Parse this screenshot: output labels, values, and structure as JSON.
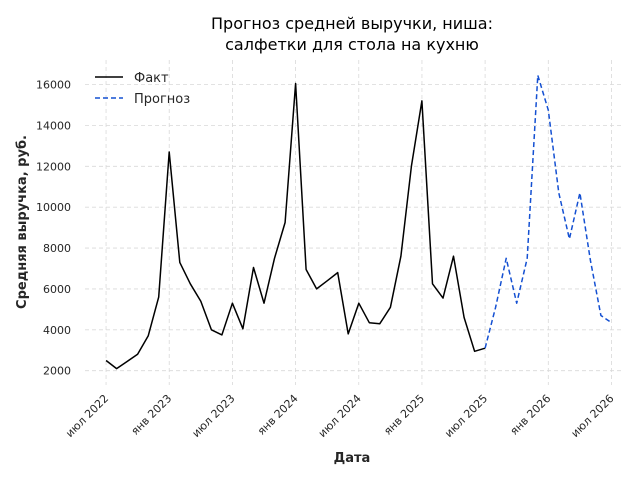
{
  "chart_data": {
    "type": "line",
    "title_lines": [
      "Прогноз средней выручки, ниша:",
      "салфетки для стола на кухню"
    ],
    "xlabel": "Дата",
    "ylabel": "Средняя выручка, руб.",
    "x_ticks": [
      "2022-07",
      "2023-01",
      "2023-07",
      "2024-01",
      "2024-07",
      "2025-01",
      "2025-07",
      "2026-01",
      "2026-07"
    ],
    "x_tick_labels": [
      "июл 2022",
      "янв 2023",
      "июл 2023",
      "янв 2024",
      "июл 2024",
      "янв 2025",
      "июл 2025",
      "янв 2026",
      "июл 2026"
    ],
    "y_ticks": [
      2000,
      4000,
      6000,
      8000,
      10000,
      12000,
      14000,
      16000
    ],
    "y_tick_labels": [
      "2000",
      "4000",
      "6000",
      "8000",
      "10000",
      "12000",
      "14000",
      "16000"
    ],
    "xlim": [
      "2022-05",
      "2026-08"
    ],
    "ylim": [
      1300,
      17200
    ],
    "grid": true,
    "legend_position": "top-left",
    "series": [
      {
        "name": "Факт",
        "color": "#000000",
        "style": "solid",
        "x": [
          "2022-07",
          "2022-08",
          "2022-09",
          "2022-10",
          "2022-11",
          "2022-12",
          "2023-01",
          "2023-02",
          "2023-03",
          "2023-04",
          "2023-05",
          "2023-06",
          "2023-07",
          "2023-08",
          "2023-09",
          "2023-10",
          "2023-11",
          "2023-12",
          "2024-01",
          "2024-02",
          "2024-03",
          "2024-04",
          "2024-05",
          "2024-06",
          "2024-07",
          "2024-08",
          "2024-09",
          "2024-10",
          "2024-11",
          "2024-12",
          "2025-01",
          "2025-02",
          "2025-03",
          "2025-04",
          "2025-05",
          "2025-06",
          "2025-07"
        ],
        "values": [
          2500,
          2100,
          2450,
          2800,
          3700,
          5600,
          12700,
          7300,
          6250,
          5400,
          4000,
          3750,
          5300,
          4050,
          7050,
          5300,
          7500,
          9250,
          16050,
          6950,
          6000,
          6400,
          6800,
          3800,
          5300,
          4350,
          4300,
          5100,
          7600,
          12000,
          15200,
          6250,
          5550,
          7600,
          4600,
          2950,
          3100
        ]
      },
      {
        "name": "Прогноз",
        "color": "#1450d2",
        "style": "dashed",
        "x": [
          "2025-07",
          "2025-08",
          "2025-09",
          "2025-10",
          "2025-11",
          "2025-12",
          "2026-01",
          "2026-02",
          "2026-03",
          "2026-04",
          "2026-05",
          "2026-06",
          "2026-07"
        ],
        "values": [
          3100,
          5100,
          7500,
          5300,
          7500,
          16450,
          14750,
          10700,
          8450,
          10700,
          7400,
          4700,
          4350
        ]
      }
    ]
  }
}
